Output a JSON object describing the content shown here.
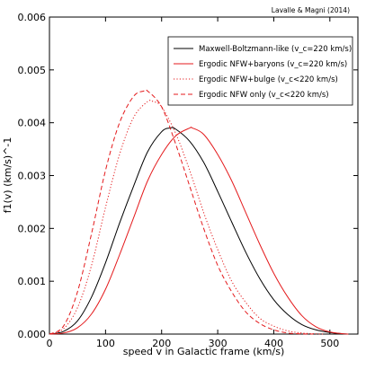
{
  "credit": "Lavalle & Magni (2014)",
  "chart_data": {
    "type": "line",
    "xlabel": "speed v in Galactic frame (km/s)",
    "ylabel": "f1(v) (km/s)^-1",
    "xlim": [
      0,
      550
    ],
    "ylim": [
      0,
      0.006
    ],
    "xticks": [
      0,
      100,
      200,
      300,
      400,
      500
    ],
    "xtick_labels": [
      "0",
      "100",
      "200",
      "300",
      "400",
      "500"
    ],
    "yticks": [
      0,
      0.001,
      0.002,
      0.003,
      0.004,
      0.005,
      0.006
    ],
    "ytick_labels": [
      "0.000",
      "0.001",
      "0.002",
      "0.003",
      "0.004",
      "0.005",
      "0.006"
    ],
    "grid": false,
    "legend_position": "top-right",
    "series": [
      {
        "name": "Maxwell-Boltzmann-like (v_c = 220 km/s)",
        "legend_label": "Maxwell-Boltzmann-like (v_c=220 km/s)",
        "color": "#000000",
        "style": "solid",
        "x": [
          0,
          25,
          50,
          75,
          100,
          125,
          150,
          175,
          200,
          215,
          225,
          250,
          275,
          300,
          325,
          350,
          375,
          400,
          425,
          450,
          475,
          500,
          525,
          533
        ],
        "y": [
          0,
          5e-05,
          0.00025,
          0.0007,
          0.00135,
          0.0021,
          0.0028,
          0.00345,
          0.00383,
          0.0039,
          0.00388,
          0.00365,
          0.00325,
          0.0027,
          0.00212,
          0.00155,
          0.00105,
          0.00065,
          0.00037,
          0.00018,
          8e-05,
          3e-05,
          5e-06,
          0
        ]
      },
      {
        "name": "Ergodic NFW+baryons (v_c = 220 km/s)",
        "legend_label": "Ergodic NFW+baryons (v_c=220 km/s)",
        "color": "#e41a1c",
        "style": "solid",
        "x": [
          0,
          25,
          50,
          75,
          100,
          125,
          150,
          175,
          200,
          225,
          250,
          255,
          275,
          300,
          325,
          350,
          375,
          400,
          425,
          450,
          475,
          500,
          525,
          533
        ],
        "y": [
          0,
          2e-05,
          0.00012,
          0.00038,
          0.00085,
          0.0015,
          0.0022,
          0.0029,
          0.0034,
          0.00375,
          0.0039,
          0.0039,
          0.00378,
          0.0034,
          0.0029,
          0.0023,
          0.0017,
          0.00115,
          0.0007,
          0.00035,
          0.00014,
          4e-05,
          5e-06,
          0
        ]
      },
      {
        "name": "Ergodic NFW+bulge (v_c < 220 km/s)",
        "legend_label": "Ergodic NFW+bulge (v_c<220 km/s)",
        "color": "#e41a1c",
        "style": "dotted",
        "x": [
          0,
          25,
          50,
          75,
          100,
          125,
          150,
          175,
          185,
          200,
          225,
          250,
          275,
          300,
          325,
          350,
          375,
          400,
          425,
          450,
          475,
          490
        ],
        "y": [
          0,
          0.0001,
          0.0005,
          0.0013,
          0.0024,
          0.0034,
          0.0041,
          0.0044,
          0.0044,
          0.0043,
          0.0038,
          0.0031,
          0.0023,
          0.0016,
          0.001,
          0.0006,
          0.0003,
          0.00015,
          6e-05,
          2e-05,
          5e-06,
          0
        ]
      },
      {
        "name": "Ergodic NFW only (v_c < 220 km/s)",
        "legend_label": "Ergodic NFW only (v_c<220 km/s)",
        "color": "#e41a1c",
        "style": "dashed",
        "x": [
          0,
          25,
          50,
          75,
          100,
          125,
          150,
          168,
          175,
          200,
          225,
          250,
          275,
          300,
          325,
          350,
          375,
          400,
          425,
          450,
          470
        ],
        "y": [
          0,
          0.00015,
          0.0008,
          0.0019,
          0.0031,
          0.004,
          0.0045,
          0.0046,
          0.0046,
          0.0043,
          0.0036,
          0.0028,
          0.002,
          0.0013,
          0.0008,
          0.00042,
          0.0002,
          8e-05,
          2e-05,
          4e-06,
          0
        ]
      }
    ]
  }
}
